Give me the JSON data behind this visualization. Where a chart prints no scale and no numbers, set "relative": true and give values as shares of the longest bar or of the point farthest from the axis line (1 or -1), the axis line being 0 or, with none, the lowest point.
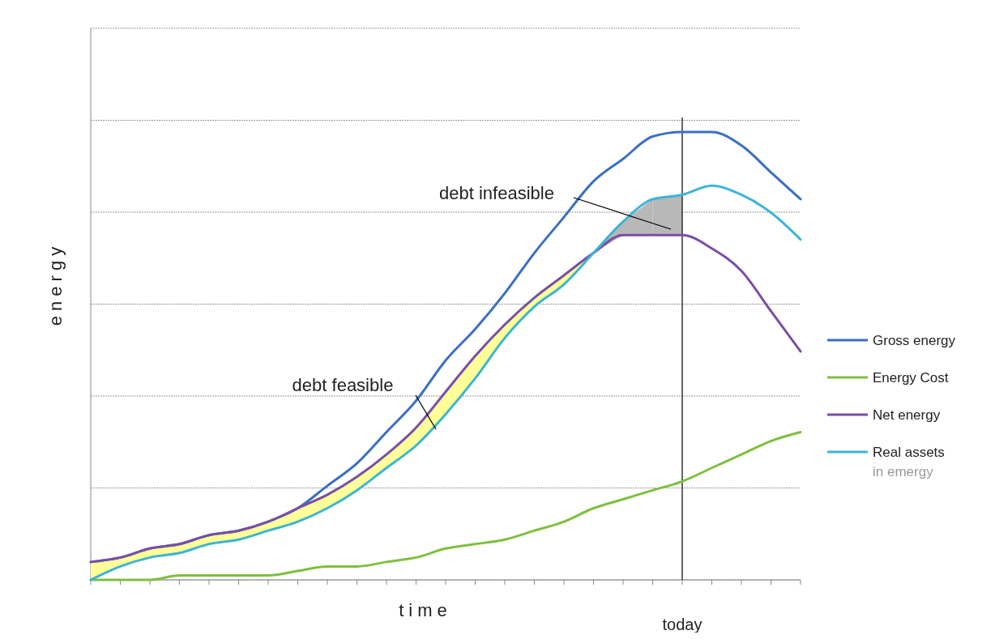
{
  "chart_data": {
    "type": "line",
    "relative": true,
    "xlabel": "time",
    "ylabel": "energy",
    "categories": [
      null,
      null,
      null,
      null,
      null,
      null,
      null,
      null,
      null,
      null,
      null,
      null,
      null,
      null,
      null,
      null,
      null,
      null,
      null,
      null,
      null,
      null,
      null,
      null,
      null
    ],
    "series": [
      {
        "name": "Gross energy",
        "color": "#3a6fc4",
        "values": [
          0.04,
          0.05,
          0.07,
          0.08,
          0.1,
          0.11,
          0.13,
          0.16,
          0.21,
          0.26,
          0.33,
          0.4,
          0.49,
          0.56,
          0.64,
          0.73,
          0.81,
          0.89,
          0.94,
          0.99,
          1,
          1,
          0.97,
          0.91,
          0.85
        ]
      },
      {
        "name": "Energy Cost",
        "color": "#7fbf3f",
        "values": [
          0,
          0,
          0,
          0.01,
          0.01,
          0.01,
          0.01,
          0.02,
          0.03,
          0.03,
          0.04,
          0.05,
          0.07,
          0.08,
          0.09,
          0.11,
          0.13,
          0.16,
          0.18,
          0.2,
          0.22,
          0.25,
          0.28,
          0.31,
          0.33
        ]
      },
      {
        "name": "Net energy",
        "color": "#7a4fa3",
        "values": [
          0.04,
          0.05,
          0.07,
          0.08,
          0.1,
          0.11,
          0.13,
          0.16,
          0.19,
          0.23,
          0.28,
          0.34,
          0.42,
          0.5,
          0.57,
          0.63,
          0.68,
          0.73,
          0.77,
          0.77,
          0.77,
          0.74,
          0.69,
          0.6,
          0.51
        ],
        "lower": [
          0,
          0.03,
          0.05,
          0.06,
          0.08,
          0.09,
          0.11,
          0.13,
          0.16,
          0.2,
          0.25,
          0.3,
          0.37,
          0.45,
          0.54,
          0.61,
          0.66,
          0.73,
          null,
          null,
          null,
          null,
          null,
          null,
          null
        ],
        "upper": [
          0.04,
          0.05,
          0.07,
          0.08,
          0.1,
          0.11,
          0.13,
          0.16,
          0.19,
          0.23,
          0.28,
          0.34,
          0.42,
          0.5,
          0.57,
          0.63,
          0.68,
          0.73,
          null,
          null,
          null,
          null,
          null,
          null,
          null
        ]
      },
      {
        "name": "Real assets in emergy",
        "color": "#3cb4d8",
        "values": [
          0,
          0.03,
          0.05,
          0.06,
          0.08,
          0.09,
          0.11,
          0.13,
          0.16,
          0.2,
          0.25,
          0.3,
          0.37,
          0.45,
          0.54,
          0.61,
          0.66,
          0.73,
          0.8,
          0.85,
          0.86,
          0.88,
          0.86,
          0.82,
          0.76
        ],
        "lower": [
          null,
          null,
          null,
          null,
          null,
          null,
          null,
          null,
          null,
          null,
          null,
          null,
          null,
          null,
          null,
          null,
          null,
          0.73,
          0.77,
          0.77,
          0.77,
          null,
          null,
          null,
          null
        ],
        "upper": [
          null,
          null,
          null,
          null,
          null,
          null,
          null,
          null,
          null,
          null,
          null,
          null,
          null,
          null,
          null,
          null,
          null,
          0.73,
          0.8,
          0.85,
          0.86,
          null,
          null,
          null,
          null
        ]
      }
    ],
    "annotations": [
      "debt infeasible",
      "debt feasible",
      "today"
    ],
    "grid": true,
    "legend": "right",
    "marker": "none",
    "line_style": "solid"
  }
}
